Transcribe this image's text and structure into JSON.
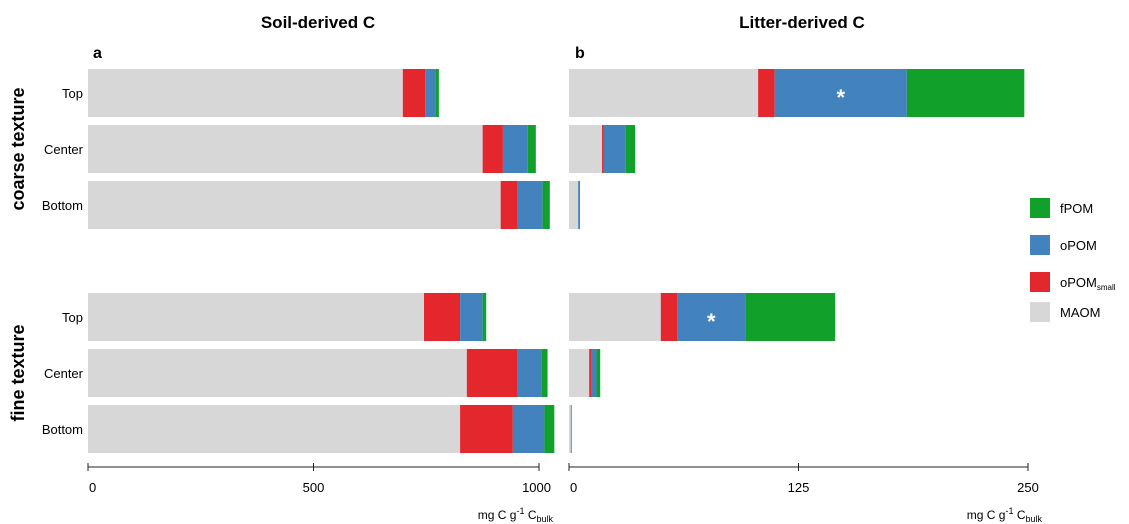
{
  "colors": {
    "MAOM": "#d7d7d7",
    "oPOM_small": "#e4272d",
    "oPOM": "#4383bd",
    "fPOM": "#11a12b",
    "star_text": "#ffffff"
  },
  "chart_data": [
    {
      "type": "bar",
      "orientation": "horizontal",
      "stacked": true,
      "title": "Soil-derived C",
      "panel_letter": "a",
      "xlim": [
        0,
        1000
      ],
      "xticks": [
        0,
        500,
        1000
      ],
      "xtick_labels": [
        "0",
        "500",
        "1000"
      ],
      "xlabel_main": "mg C g",
      "xlabel_sup": "-1",
      "xlabel_mid": " C",
      "xlabel_sub": "bulk",
      "groups": [
        {
          "name": "coarse texture",
          "rows": [
            {
              "category": "Top",
              "MAOM": 698,
              "oPOM_small": 50,
              "oPOM": 22,
              "fPOM": 8
            },
            {
              "category": "Center",
              "MAOM": 875,
              "oPOM_small": 45,
              "oPOM": 55,
              "fPOM": 18
            },
            {
              "category": "Bottom",
              "MAOM": 915,
              "oPOM_small": 38,
              "oPOM": 55,
              "fPOM": 16
            }
          ]
        },
        {
          "name": "fine texture",
          "rows": [
            {
              "category": "Top",
              "MAOM": 745,
              "oPOM_small": 80,
              "oPOM": 50,
              "fPOM": 8
            },
            {
              "category": "Center",
              "MAOM": 840,
              "oPOM_small": 113,
              "oPOM": 52,
              "fPOM": 14
            },
            {
              "category": "Bottom",
              "MAOM": 825,
              "oPOM_small": 117,
              "oPOM": 70,
              "fPOM": 22
            }
          ]
        }
      ]
    },
    {
      "type": "bar",
      "orientation": "horizontal",
      "stacked": true,
      "title": "Litter-derived C",
      "panel_letter": "b",
      "xlim": [
        0,
        250
      ],
      "xticks": [
        0,
        125,
        250
      ],
      "xtick_labels": [
        "0",
        "125",
        "250"
      ],
      "xlabel_main": "mg C g",
      "xlabel_sup": "-1",
      "xlabel_mid": " C",
      "xlabel_sub": "bulk",
      "groups": [
        {
          "name": "coarse texture",
          "rows": [
            {
              "category": "Top",
              "MAOM": 103,
              "oPOM_small": 9,
              "oPOM": 72,
              "fPOM": 64,
              "star": "*"
            },
            {
              "category": "Center",
              "MAOM": 18,
              "oPOM_small": 1,
              "oPOM": 12,
              "fPOM": 5
            },
            {
              "category": "Bottom",
              "MAOM": 5,
              "oPOM_small": 0,
              "oPOM": 1,
              "fPOM": 0
            }
          ]
        },
        {
          "name": "fine texture",
          "rows": [
            {
              "category": "Top",
              "MAOM": 50,
              "oPOM_small": 9,
              "oPOM": 37,
              "fPOM": 49,
              "star": "*"
            },
            {
              "category": "Center",
              "MAOM": 11,
              "oPOM_small": 1,
              "oPOM": 3,
              "fPOM": 2
            },
            {
              "category": "Bottom",
              "MAOM": 1,
              "oPOM_small": 0,
              "oPOM": 0.5,
              "fPOM": 0
            }
          ]
        }
      ]
    }
  ],
  "legend": [
    {
      "key": "fPOM",
      "label": "fPOM",
      "sub": ""
    },
    {
      "key": "oPOM",
      "label": "oPOM",
      "sub": ""
    },
    {
      "key": "oPOM_small",
      "label": "oPOM",
      "sub": "small"
    },
    {
      "key": "MAOM",
      "label": "MAOM",
      "sub": ""
    }
  ]
}
